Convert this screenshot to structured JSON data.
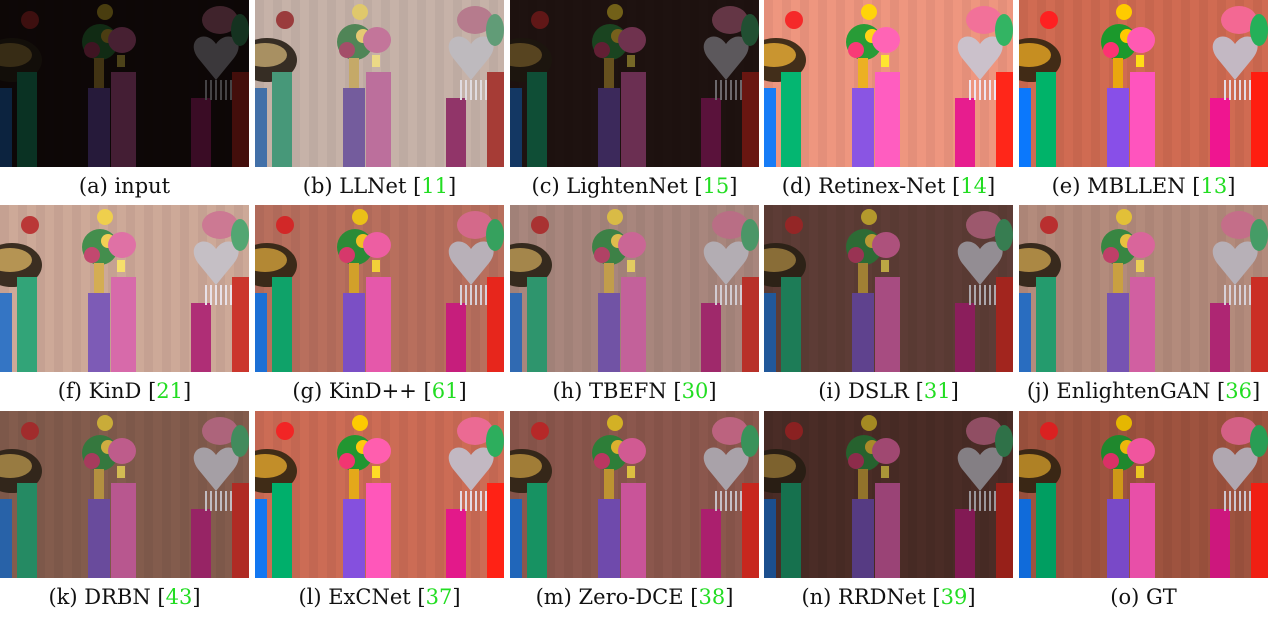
{
  "panels": [
    {
      "label": "(a) input",
      "ref": "",
      "bg": "#2b1714",
      "brightness": 0.32,
      "saturation": 0.9
    },
    {
      "label": "(b) LLNet",
      "ref": "11",
      "bg": "#c9a796",
      "brightness": 1.05,
      "saturation": 0.55
    },
    {
      "label": "(c) LightenNet",
      "ref": "15",
      "bg": "#3f2420",
      "brightness": 0.5,
      "saturation": 0.9
    },
    {
      "label": "(d) Retinex-Net",
      "ref": "14",
      "bg": "#d08a78",
      "brightness": 1.1,
      "saturation": 1.15
    },
    {
      "label": "(e) MBLLEN",
      "ref": "13",
      "bg": "#b46a58",
      "brightness": 1.05,
      "saturation": 1.3
    },
    {
      "label": "(f) KinD",
      "ref": "21",
      "bg": "#c79a86",
      "brightness": 1.08,
      "saturation": 0.75
    },
    {
      "label": "(g) KinD++",
      "ref": "61",
      "bg": "#b5705f",
      "brightness": 1.0,
      "saturation": 1.05
    },
    {
      "label": "(h) TBEFN",
      "ref": "30",
      "bg": "#b5877a",
      "brightness": 0.98,
      "saturation": 0.75
    },
    {
      "label": "(i) DSLR",
      "ref": "31",
      "bg": "#7a4a40",
      "brightness": 0.8,
      "saturation": 0.85
    },
    {
      "label": "(j) EnlightenGAN",
      "ref": "36",
      "bg": "#b98a78",
      "brightness": 1.0,
      "saturation": 0.85
    },
    {
      "label": "(k) DRBN",
      "ref": "43",
      "bg": "#9a6450",
      "brightness": 0.9,
      "saturation": 0.8
    },
    {
      "label": "(l) ExCNet",
      "ref": "37",
      "bg": "#b66a58",
      "brightness": 1.05,
      "saturation": 1.2
    },
    {
      "label": "(m) Zero-DCE",
      "ref": "38",
      "bg": "#9a5e52",
      "brightness": 0.92,
      "saturation": 0.95
    },
    {
      "label": "(n) RRDNet",
      "ref": "39",
      "bg": "#6a3c33",
      "brightness": 0.72,
      "saturation": 0.9
    },
    {
      "label": "(o) GT",
      "ref": "",
      "bg": "#9c5a48",
      "brightness": 0.95,
      "saturation": 1.2
    }
  ],
  "colors": {
    "citation": "#22dd22",
    "caption_text": "#111111"
  }
}
